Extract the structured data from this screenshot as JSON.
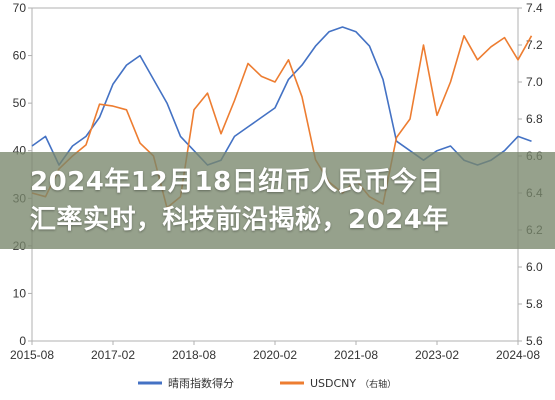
{
  "headline": {
    "line1": "2024年12月18日纽币人民币今日",
    "line2": "汇率实时，科技前沿揭秘，2024年"
  },
  "chart_data": {
    "type": "line",
    "title": "",
    "xlabel": "",
    "ylabel_left": "",
    "ylabel_right": "",
    "x_tick_labels": [
      "2015-08",
      "2017-02",
      "2018-08",
      "2020-02",
      "2021-08",
      "2023-02",
      "2024-08"
    ],
    "x_range": [
      "2015-08",
      "2024-08"
    ],
    "ylim_left": [
      0,
      70
    ],
    "yticks_left": [
      0,
      10,
      20,
      30,
      40,
      50,
      60,
      70
    ],
    "ylim_right": [
      5.6,
      7.4
    ],
    "yticks_right": [
      5.6,
      5.8,
      6.0,
      6.2,
      6.4,
      6.6,
      6.8,
      7.0,
      7.2,
      7.4
    ],
    "grid": false,
    "legend_position": "bottom",
    "series": [
      {
        "name": "晴雨指数得分",
        "axis": "left",
        "color": "#4472c4",
        "points": [
          [
            "2015-08",
            41
          ],
          [
            "2015-11",
            43
          ],
          [
            "2016-02",
            37
          ],
          [
            "2016-05",
            41
          ],
          [
            "2016-08",
            43
          ],
          [
            "2016-11",
            47
          ],
          [
            "2017-02",
            54
          ],
          [
            "2017-05",
            58
          ],
          [
            "2017-08",
            60
          ],
          [
            "2017-11",
            55
          ],
          [
            "2018-02",
            50
          ],
          [
            "2018-05",
            43
          ],
          [
            "2018-08",
            40
          ],
          [
            "2018-11",
            37
          ],
          [
            "2019-02",
            38
          ],
          [
            "2019-05",
            43
          ],
          [
            "2019-08",
            45
          ],
          [
            "2019-11",
            47
          ],
          [
            "2020-02",
            49
          ],
          [
            "2020-05",
            55
          ],
          [
            "2020-08",
            58
          ],
          [
            "2020-11",
            62
          ],
          [
            "2021-02",
            65
          ],
          [
            "2021-05",
            66
          ],
          [
            "2021-08",
            65
          ],
          [
            "2021-11",
            62
          ],
          [
            "2022-02",
            55
          ],
          [
            "2022-05",
            42
          ],
          [
            "2022-08",
            40
          ],
          [
            "2022-11",
            38
          ],
          [
            "2023-02",
            40
          ],
          [
            "2023-05",
            41
          ],
          [
            "2023-08",
            38
          ],
          [
            "2023-11",
            37
          ],
          [
            "2024-02",
            38
          ],
          [
            "2024-05",
            40
          ],
          [
            "2024-08",
            43
          ],
          [
            "2024-11",
            42
          ]
        ]
      },
      {
        "name": "USDCNY",
        "axis": "right",
        "axis_label": "（右轴）",
        "color": "#ed7d31",
        "points": [
          [
            "2015-08",
            6.4
          ],
          [
            "2015-11",
            6.38
          ],
          [
            "2016-02",
            6.53
          ],
          [
            "2016-05",
            6.6
          ],
          [
            "2016-08",
            6.66
          ],
          [
            "2016-11",
            6.88
          ],
          [
            "2017-02",
            6.87
          ],
          [
            "2017-05",
            6.85
          ],
          [
            "2017-08",
            6.67
          ],
          [
            "2017-11",
            6.6
          ],
          [
            "2018-02",
            6.32
          ],
          [
            "2018-05",
            6.38
          ],
          [
            "2018-08",
            6.85
          ],
          [
            "2018-11",
            6.94
          ],
          [
            "2019-02",
            6.72
          ],
          [
            "2019-05",
            6.9
          ],
          [
            "2019-08",
            7.1
          ],
          [
            "2019-11",
            7.03
          ],
          [
            "2020-02",
            7.0
          ],
          [
            "2020-05",
            7.12
          ],
          [
            "2020-08",
            6.92
          ],
          [
            "2020-11",
            6.58
          ],
          [
            "2021-02",
            6.46
          ],
          [
            "2021-05",
            6.4
          ],
          [
            "2021-08",
            6.47
          ],
          [
            "2021-11",
            6.38
          ],
          [
            "2022-02",
            6.34
          ],
          [
            "2022-05",
            6.7
          ],
          [
            "2022-08",
            6.8
          ],
          [
            "2022-11",
            7.2
          ],
          [
            "2023-02",
            6.82
          ],
          [
            "2023-05",
            7.0
          ],
          [
            "2023-08",
            7.25
          ],
          [
            "2023-11",
            7.12
          ],
          [
            "2024-02",
            7.19
          ],
          [
            "2024-05",
            7.24
          ],
          [
            "2024-08",
            7.12
          ],
          [
            "2024-11",
            7.25
          ]
        ]
      }
    ]
  }
}
